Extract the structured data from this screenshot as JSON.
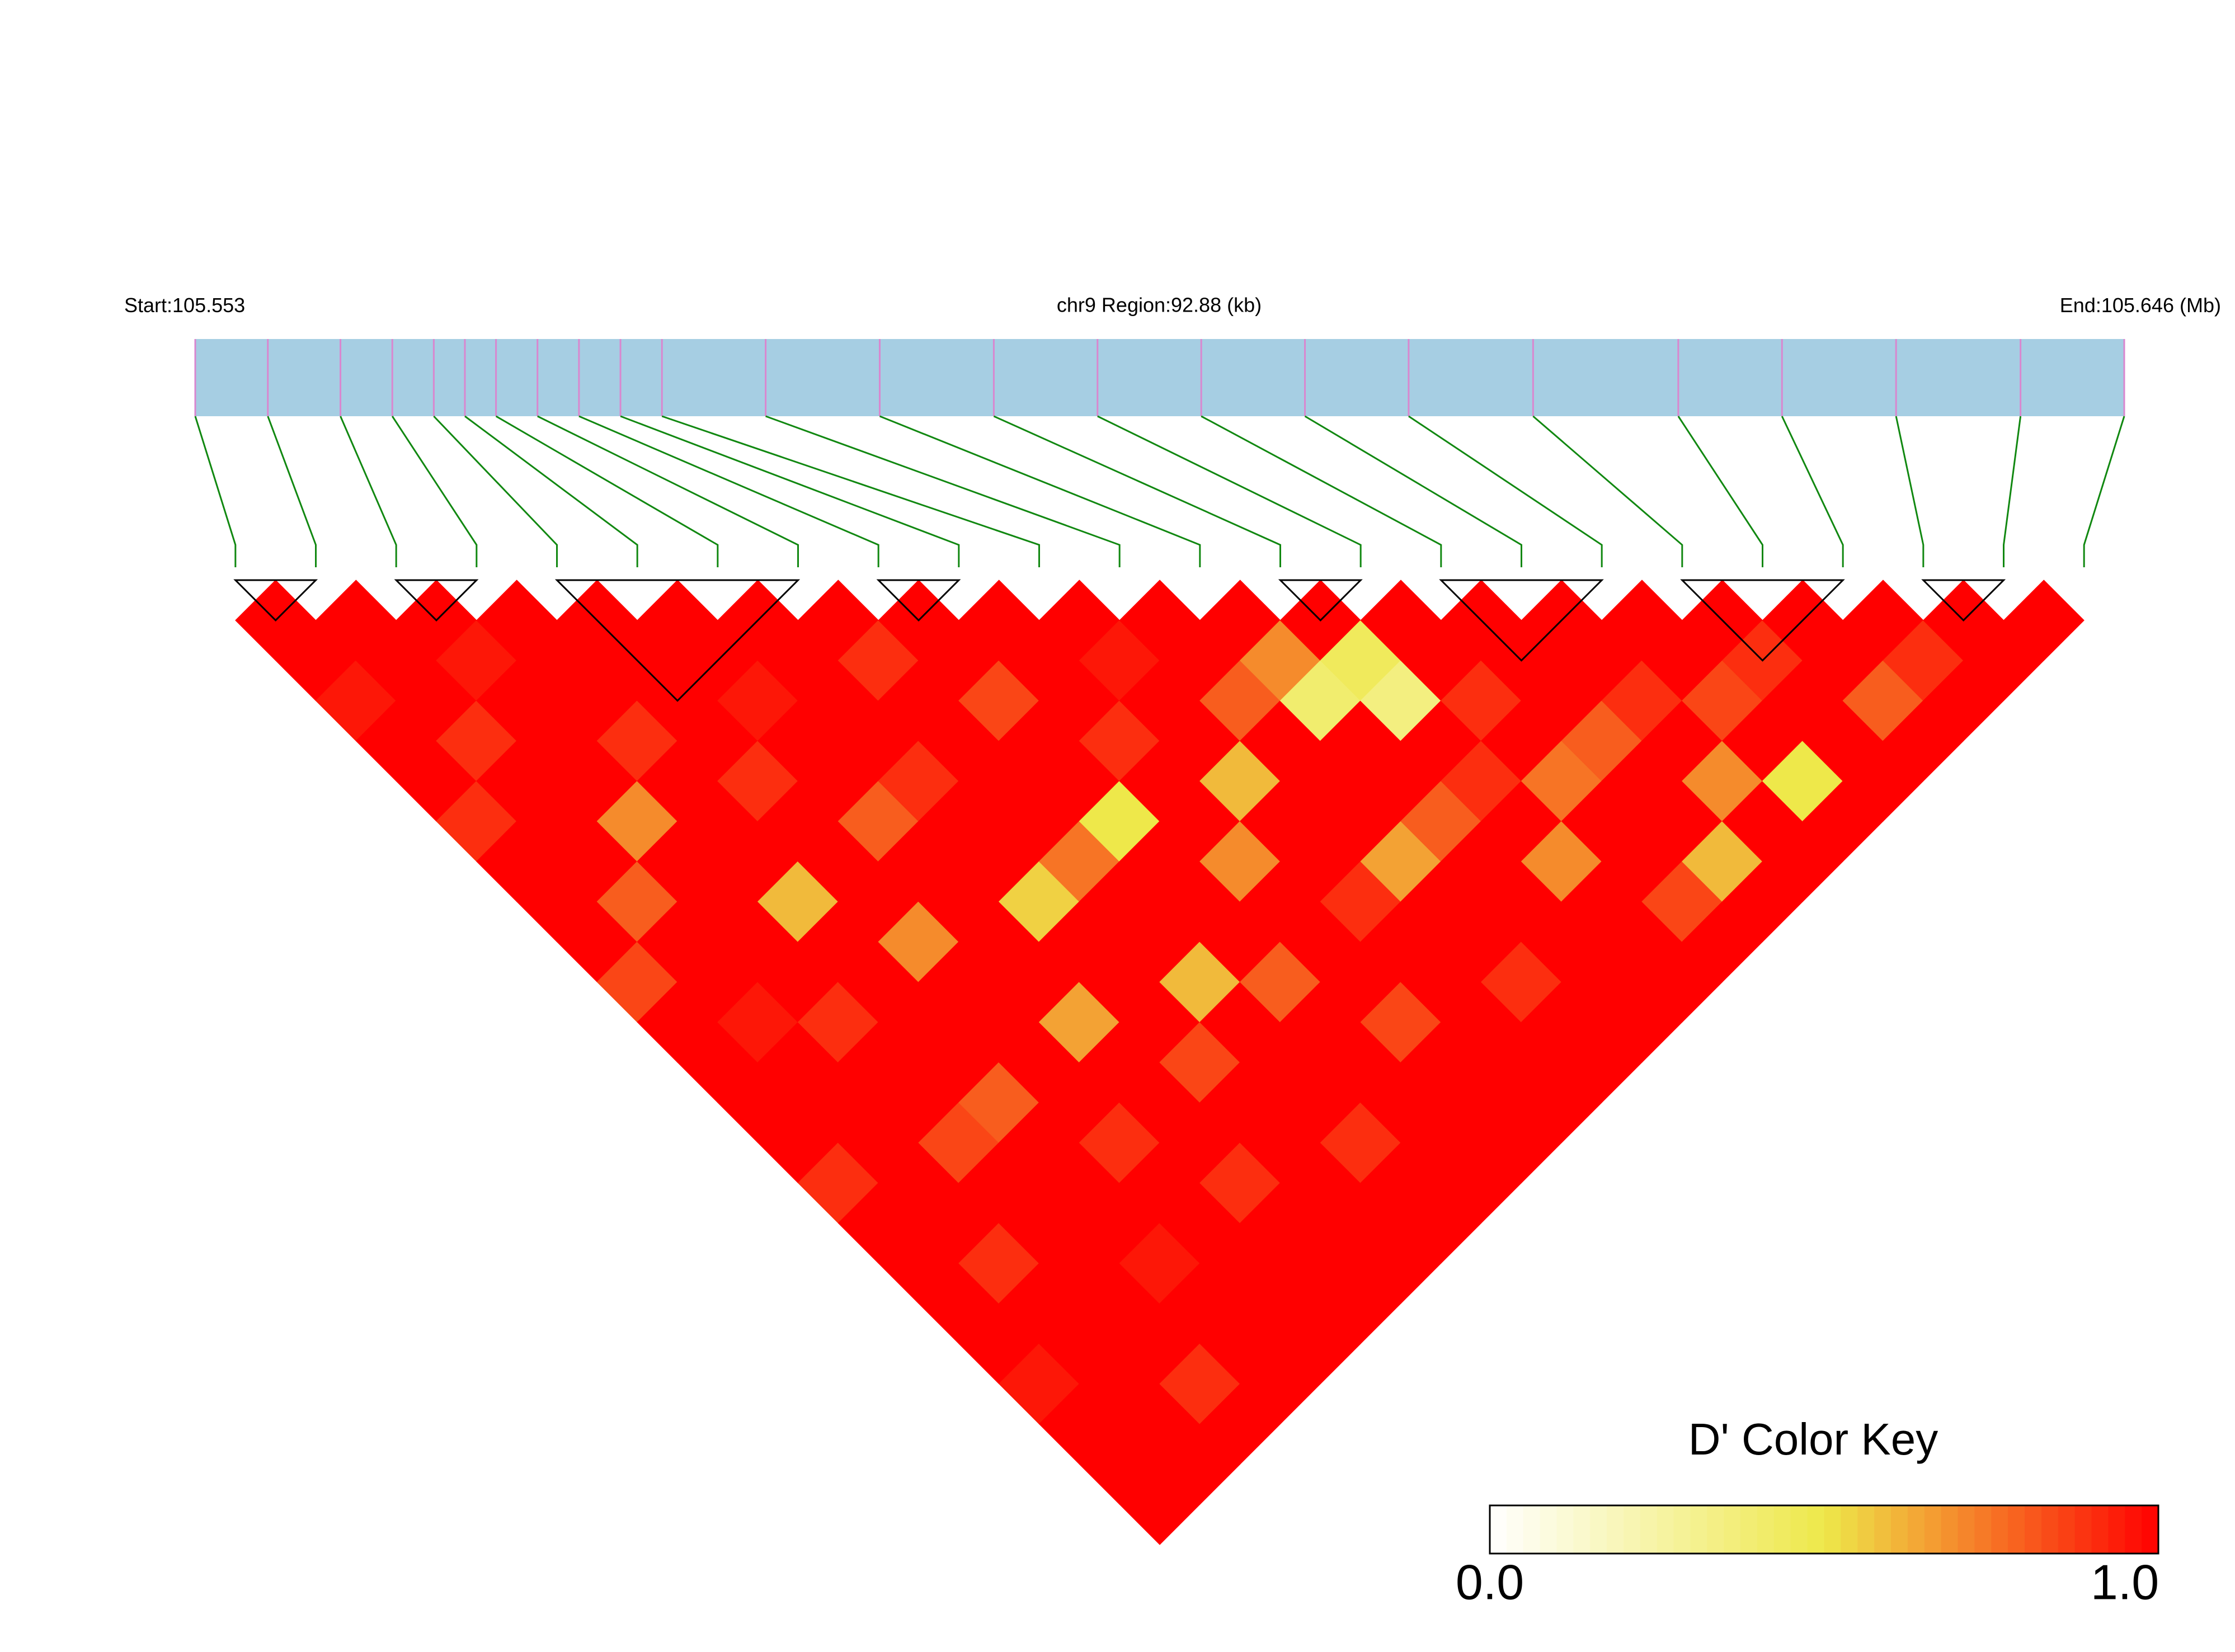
{
  "chart_data": {
    "type": "ld_heatmap",
    "title": "chr9 Region:92.88 (kb)",
    "start_prefix": "Start:",
    "end_prefix": "End:",
    "unit": "(Mb)",
    "xlim": [
      105.553,
      105.646
    ],
    "positions": [
      105.553,
      105.5565,
      105.56,
      105.5625,
      105.5645,
      105.566,
      105.5675,
      105.5695,
      105.5715,
      105.5735,
      105.5755,
      105.5805,
      105.586,
      105.5915,
      105.5965,
      105.6015,
      105.6065,
      105.6115,
      105.6175,
      105.6245,
      105.6295,
      105.635,
      105.641,
      105.646
    ],
    "track_color": "#a6cee3",
    "tick_color": "#d987cf",
    "connector_color": "#118811",
    "block_color": "#000000",
    "blocks": [
      [
        0,
        1
      ],
      [
        2,
        3
      ],
      [
        4,
        7
      ],
      [
        8,
        9
      ],
      [
        13,
        14
      ],
      [
        15,
        17
      ],
      [
        18,
        20
      ],
      [
        21,
        22
      ]
    ],
    "dprime": [
      [
        1,
        1,
        0.95,
        1,
        1,
        0.9,
        1,
        1,
        1,
        0.85,
        1,
        1,
        1,
        1,
        0.9,
        1,
        1,
        1,
        1,
        0.95,
        1,
        1,
        1
      ],
      [
        1,
        1,
        1,
        0.9,
        1,
        1,
        1,
        0.8,
        1,
        1,
        0.95,
        1,
        1,
        1,
        1,
        1,
        0.9,
        1,
        1,
        1,
        1,
        1
      ],
      [
        1,
        0.95,
        1,
        1,
        1,
        0.7,
        1,
        1,
        1,
        1,
        0.9,
        1,
        1,
        0.85,
        1,
        1,
        1,
        1,
        1,
        0.9,
        1
      ],
      [
        1,
        1,
        1,
        0.9,
        1,
        1,
        1,
        0.6,
        1,
        1,
        1,
        1,
        0.8,
        1,
        1,
        1,
        0.95,
        1,
        1,
        1
      ],
      [
        1,
        1,
        1,
        1,
        0.9,
        1,
        1,
        1,
        0.7,
        1,
        1,
        1,
        1,
        0.9,
        1,
        1,
        1,
        1,
        1
      ],
      [
        1,
        1,
        0.95,
        1,
        1,
        0.8,
        1,
        1,
        1,
        1,
        0.65,
        1,
        1,
        1,
        0.9,
        1,
        1,
        1
      ],
      [
        1,
        1,
        1,
        1,
        0.9,
        1,
        1,
        0.55,
        1,
        1,
        1,
        0.85,
        1,
        1,
        1,
        1,
        1
      ],
      [
        1,
        0.9,
        1,
        1,
        1,
        1,
        0.75,
        1,
        1,
        0.6,
        1,
        1,
        1,
        0.9,
        1,
        1
      ],
      [
        1,
        1,
        0.85,
        1,
        1,
        0.5,
        1,
        1,
        1,
        0.8,
        1,
        1,
        1,
        1,
        1
      ],
      [
        1,
        1,
        1,
        0.9,
        1,
        1,
        0.7,
        1,
        1,
        1,
        0.85,
        1,
        1,
        1
      ],
      [
        1,
        0.95,
        1,
        1,
        0.6,
        1,
        1,
        0.9,
        1,
        1,
        1,
        1,
        1
      ],
      [
        1,
        1,
        0.8,
        1,
        1,
        1,
        0.65,
        1,
        1,
        0.9,
        1,
        1
      ],
      [
        1,
        0.7,
        0.4,
        1,
        1,
        0.8,
        1,
        1,
        1,
        1,
        1
      ],
      [
        1,
        0.45,
        0.35,
        1,
        0.9,
        1,
        0.7,
        1,
        1,
        1
      ],
      [
        1,
        1,
        0.9,
        1,
        0.75,
        1,
        1,
        0.85,
        1
      ],
      [
        1,
        1,
        1,
        0.8,
        1,
        1,
        0.6,
        1
      ],
      [
        1,
        1,
        0.9,
        1,
        0.7,
        1,
        1
      ],
      [
        1,
        1,
        0.85,
        1,
        0.5,
        1
      ],
      [
        1,
        0.9,
        1,
        1,
        1
      ],
      [
        1,
        1,
        0.8,
        1
      ],
      [
        1,
        0.9,
        1
      ],
      [
        1,
        1
      ],
      [
        1
      ]
    ],
    "legend": {
      "title": "D' Color Key",
      "colorscale": [
        [
          0,
          "#ffffff"
        ],
        [
          0.5,
          "#eee84a"
        ],
        [
          1,
          "#ff0000"
        ]
      ],
      "ticks": [
        {
          "value": 0,
          "label": "0.0"
        },
        {
          "value": 1,
          "label": "1.0"
        }
      ]
    }
  }
}
